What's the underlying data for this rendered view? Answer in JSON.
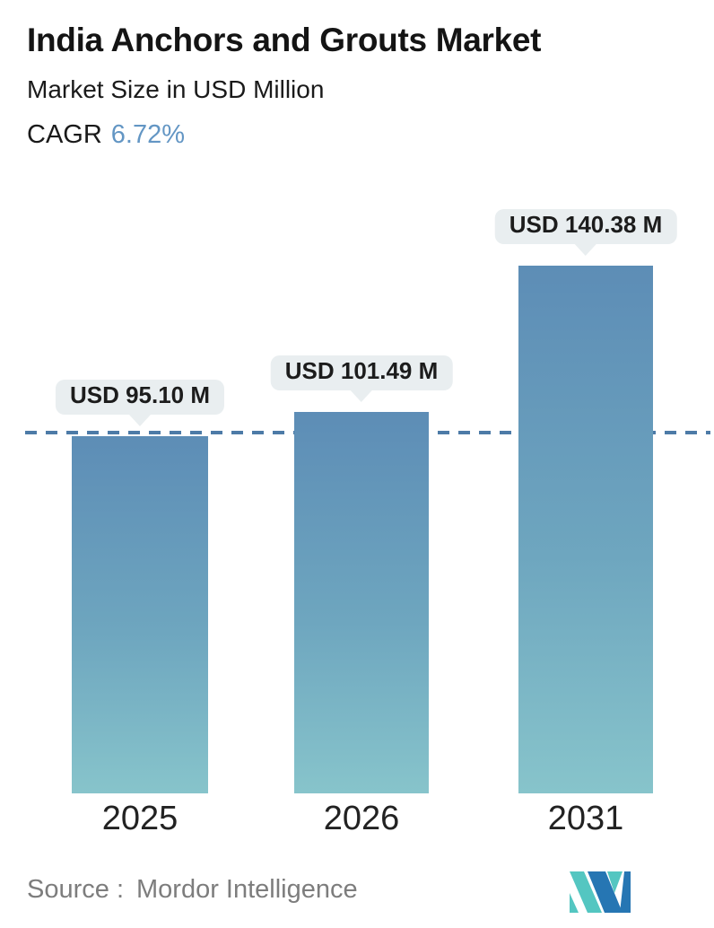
{
  "header": {
    "title": "India Anchors and Grouts Market",
    "subtitle": "Market Size in USD Million",
    "cagr_label": "CAGR",
    "cagr_value": "6.72%"
  },
  "chart_data": {
    "type": "bar",
    "title": "India Anchors and Grouts Market",
    "subtitle": "Market Size in USD Million",
    "unit": "USD Million",
    "categories": [
      "2025",
      "2026",
      "2031"
    ],
    "values": [
      95.1,
      101.49,
      140.38
    ],
    "bar_labels": [
      "USD 95.10 M",
      "USD 101.49 M",
      "USD 140.38 M"
    ],
    "cagr_percent": 6.72,
    "reference_line": {
      "style": "dashed",
      "value": 95.1,
      "note": "horizontal dashed line at 2025 bar level",
      "color": "#4d7ba7"
    },
    "legend": "none",
    "grid": false,
    "bar_gradient_top": "#5d8db6",
    "bar_gradient_bottom": "#87c4cb"
  },
  "footer": {
    "source_label": "Source :",
    "source_value": "Mordor Intelligence",
    "logo": "mordor-intelligence-logo"
  },
  "colors": {
    "cagr_value_blue": "#6396c4",
    "bubble_bg": "#e9eef0",
    "text_dark": "#1a1a1a",
    "source_gray": "#7d7d7d",
    "logo_teal": "#54c6c1",
    "logo_blue": "#2676b3"
  }
}
